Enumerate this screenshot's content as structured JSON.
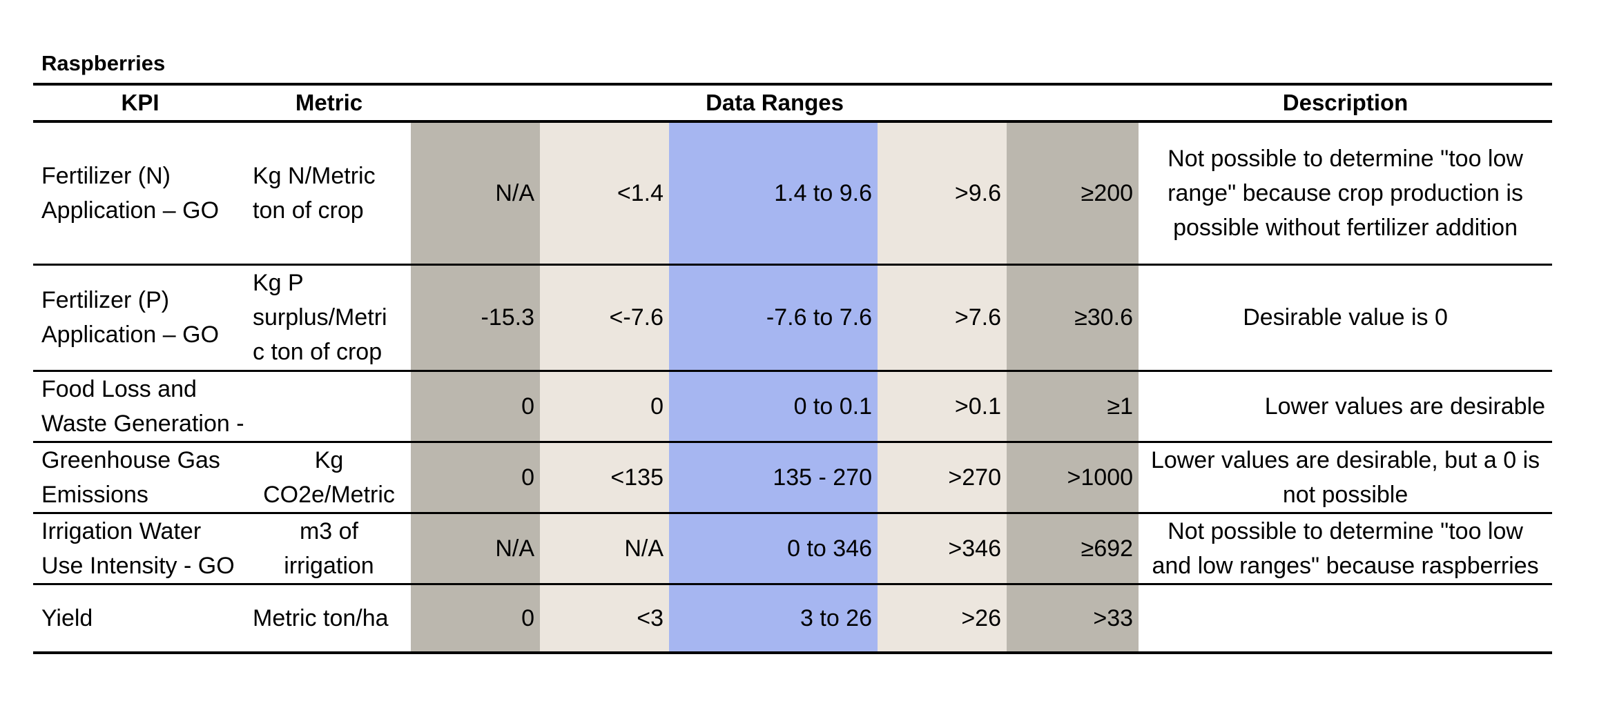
{
  "title": "Raspberries",
  "headers": {
    "kpi": "KPI",
    "metric": "Metric",
    "ranges": "Data Ranges",
    "description": "Description"
  },
  "band_colors": {
    "outer": "#bbb7ae",
    "mid": "#ece6de",
    "desirable": "#a6b6f1"
  },
  "rows": [
    {
      "kpi": [
        "Fertilizer (N)",
        "Application – GO"
      ],
      "metric": [
        "Kg N/Metric",
        "ton of crop"
      ],
      "ranges": [
        "N/A",
        "<1.4",
        "1.4 to 9.6",
        ">9.6",
        "≥200"
      ],
      "description": [
        "Not possible to determine \"too low",
        "range\" because crop production is",
        "possible without fertilizer addition"
      ]
    },
    {
      "kpi": [
        "Fertilizer (P)",
        "Application – GO"
      ],
      "metric": [
        "Kg P",
        "surplus/Metri",
        "c ton of crop"
      ],
      "ranges": [
        "-15.3",
        "<-7.6",
        "-7.6 to 7.6",
        ">7.6",
        "≥30.6"
      ],
      "description": [
        "Desirable value is 0"
      ]
    },
    {
      "kpi": [
        "Food Loss and",
        "Waste Generation -"
      ],
      "metric": [],
      "ranges": [
        "0",
        "0",
        "0 to 0.1",
        ">0.1",
        "≥1"
      ],
      "description": [
        "Lower values are desirable"
      ]
    },
    {
      "kpi": [
        "Greenhouse Gas",
        "Emissions"
      ],
      "metric": [
        "Kg",
        "CO2e/Metric"
      ],
      "ranges": [
        "0",
        "<135",
        "135 - 270",
        ">270",
        ">1000"
      ],
      "description": [
        "Lower values are desirable, but a 0 is",
        "not possible"
      ]
    },
    {
      "kpi": [
        "Irrigation Water",
        "Use Intensity - GO"
      ],
      "metric": [
        "m3 of",
        "irrigation"
      ],
      "ranges": [
        "N/A",
        "N/A",
        "0 to 346",
        ">346",
        "≥692"
      ],
      "description": [
        "Not possible to determine \"too low",
        "and low ranges\" because raspberries"
      ]
    },
    {
      "kpi": [
        "Yield"
      ],
      "metric": [
        "Metric ton/ha"
      ],
      "ranges": [
        "0",
        "<3",
        "3 to 26",
        ">26",
        ">33"
      ],
      "description": []
    }
  ]
}
